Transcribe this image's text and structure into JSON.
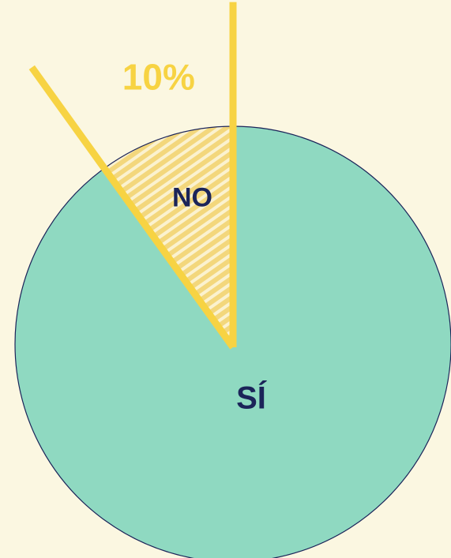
{
  "chart_data": {
    "type": "pie",
    "categories": [
      "SÍ",
      "NO"
    ],
    "values": [
      90,
      10
    ],
    "value_labels": [
      null,
      "10%"
    ],
    "colors": [
      "#8fd9c1",
      "#f3d77c"
    ]
  }
}
